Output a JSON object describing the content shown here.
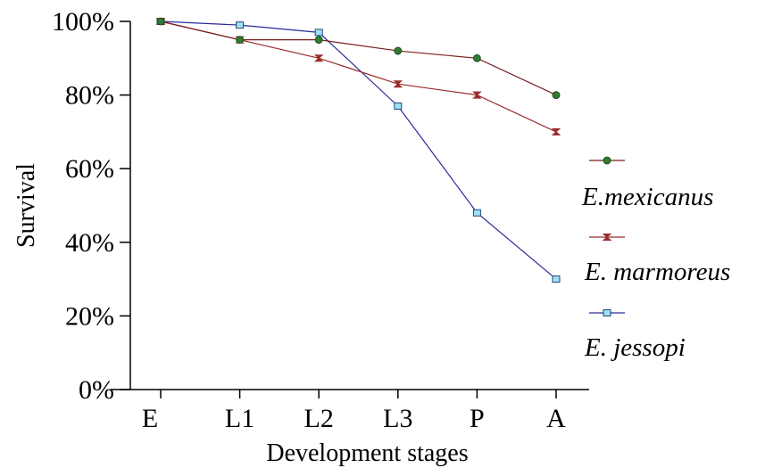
{
  "chart_data": {
    "type": "line",
    "title": "",
    "xlabel": "Development stages",
    "ylabel": "Survival",
    "categories": [
      "E",
      "L1",
      "L2",
      "L3",
      "P",
      "A"
    ],
    "y_ticks": [
      "0%",
      "20%",
      "40%",
      "60%",
      "80%",
      "100%"
    ],
    "ylim": [
      0,
      100
    ],
    "y_unit": "%",
    "grid": false,
    "legend_position": "right",
    "series": [
      {
        "name": "E.mexicanus",
        "values": [
          100,
          95,
          95,
          92,
          90,
          80
        ],
        "color": "#2e7d32",
        "line_color": "#7b1f1f",
        "marker": "circle"
      },
      {
        "name": "E. marmoreus",
        "values": [
          100,
          95,
          90,
          83,
          80,
          70
        ],
        "color": "#9b2a2a",
        "line_color": "#9b2a2a",
        "marker": "hourglass"
      },
      {
        "name": "E. jessopi",
        "values": [
          100,
          99,
          97,
          77,
          48,
          30
        ],
        "color": "#9fe0f5",
        "line_color": "#2a2a9a",
        "marker": "square"
      }
    ]
  }
}
